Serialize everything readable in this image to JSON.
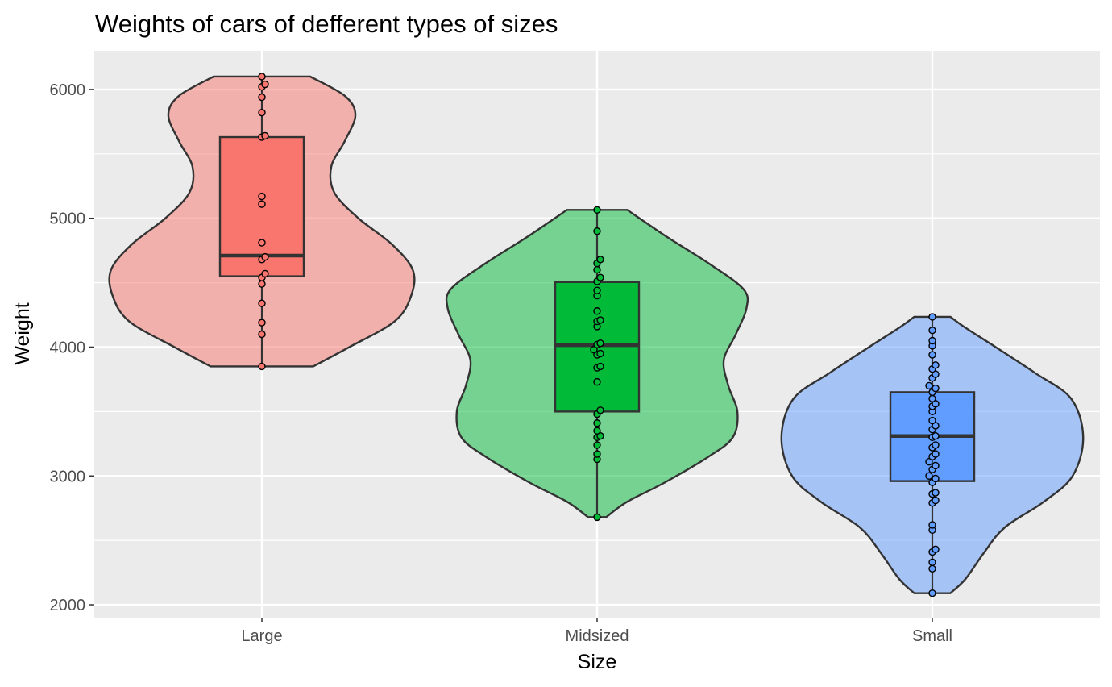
{
  "chart_data": {
    "type": "violin",
    "title": "Weights of cars of defferent types of sizes",
    "xlabel": "Size",
    "ylabel": "Weight",
    "ylim": [
      1900,
      6300
    ],
    "yticks": [
      2000,
      3000,
      4000,
      5000,
      6000
    ],
    "grid": true,
    "background": "#ebebeb",
    "legend": "none",
    "groups": [
      {
        "category": "Large",
        "fill": "#f8766d",
        "violin_alpha": 0.5,
        "box": {
          "q1": 4550,
          "median": 4710,
          "q3": 5630,
          "min": 3850,
          "max": 6100
        },
        "violin": [
          [
            3850,
            0.34
          ],
          [
            4000,
            0.58
          ],
          [
            4200,
            0.88
          ],
          [
            4400,
            0.99
          ],
          [
            4600,
            1.0
          ],
          [
            4800,
            0.86
          ],
          [
            5000,
            0.64
          ],
          [
            5200,
            0.48
          ],
          [
            5400,
            0.46
          ],
          [
            5600,
            0.55
          ],
          [
            5800,
            0.62
          ],
          [
            5950,
            0.55
          ],
          [
            6100,
            0.32
          ]
        ],
        "points": [
          3850,
          4100,
          4190,
          4340,
          4490,
          4540,
          4570,
          4680,
          4700,
          4810,
          5110,
          5170,
          5630,
          5640,
          5820,
          5940,
          6020,
          6040,
          6100
        ]
      },
      {
        "category": "Midsized",
        "fill": "#00ba38",
        "violin_alpha": 0.5,
        "box": {
          "q1": 3500,
          "median": 4015,
          "q3": 4505,
          "min": 2680,
          "max": 5065
        },
        "violin": [
          [
            2680,
            0.06
          ],
          [
            2800,
            0.2
          ],
          [
            2950,
            0.45
          ],
          [
            3150,
            0.74
          ],
          [
            3300,
            0.9
          ],
          [
            3500,
            0.93
          ],
          [
            3700,
            0.87
          ],
          [
            3900,
            0.84
          ],
          [
            4100,
            0.92
          ],
          [
            4300,
            0.99
          ],
          [
            4450,
            0.97
          ],
          [
            4650,
            0.74
          ],
          [
            4850,
            0.47
          ],
          [
            5065,
            0.2
          ]
        ],
        "points": [
          2680,
          3130,
          3170,
          3240,
          3300,
          3310,
          3350,
          3410,
          3480,
          3510,
          3730,
          3840,
          3850,
          3940,
          3950,
          3980,
          4020,
          4030,
          4160,
          4200,
          4210,
          4280,
          4400,
          4440,
          4510,
          4540,
          4600,
          4650,
          4680,
          4900,
          5065
        ]
      },
      {
        "category": "Small",
        "fill": "#619cff",
        "violin_alpha": 0.5,
        "box": {
          "q1": 2960,
          "median": 3310,
          "q3": 3650,
          "min": 2090,
          "max": 4235
        },
        "violin": [
          [
            2090,
            0.12
          ],
          [
            2200,
            0.22
          ],
          [
            2400,
            0.34
          ],
          [
            2600,
            0.48
          ],
          [
            2800,
            0.74
          ],
          [
            3000,
            0.93
          ],
          [
            3300,
            1.0
          ],
          [
            3600,
            0.92
          ],
          [
            3800,
            0.68
          ],
          [
            4000,
            0.42
          ],
          [
            4150,
            0.22
          ],
          [
            4235,
            0.12
          ]
        ],
        "points": [
          2090,
          2280,
          2330,
          2410,
          2430,
          2580,
          2620,
          2790,
          2810,
          2860,
          2870,
          2950,
          2980,
          3000,
          3050,
          3080,
          3110,
          3150,
          3170,
          3220,
          3240,
          3300,
          3310,
          3360,
          3390,
          3430,
          3500,
          3540,
          3560,
          3600,
          3650,
          3680,
          3700,
          3760,
          3790,
          3830,
          3860,
          3940,
          4010,
          4050,
          4130,
          4235
        ]
      }
    ]
  }
}
